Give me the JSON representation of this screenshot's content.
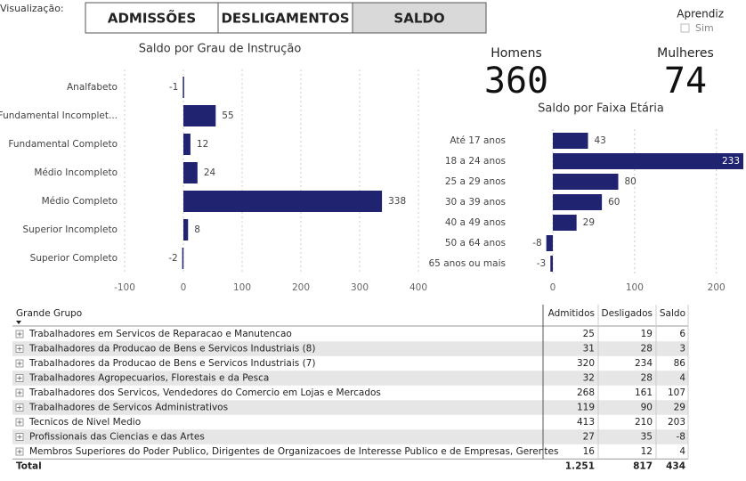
{
  "header": {
    "label": "Visualização:",
    "buttons": [
      "ADMISSÕES",
      "DESLIGAMENTOS",
      "SALDO"
    ],
    "selected": 2
  },
  "filter": {
    "title": "Aprendiz",
    "option": "Sim"
  },
  "cards": [
    {
      "label": "Homens",
      "value": 360
    },
    {
      "label": "Mulheres",
      "value": 74
    }
  ],
  "chart_data": [
    {
      "type": "bar",
      "orientation": "horizontal",
      "title": "Saldo por Grau de Instrução",
      "categories": [
        "Analfabeto",
        "Fundamental Incomplet...",
        "Fundamental Completo",
        "Médio Incompleto",
        "Médio Completo",
        "Superior Incompleto",
        "Superior Completo"
      ],
      "values": [
        -1,
        55,
        12,
        24,
        338,
        8,
        -2
      ],
      "color": "#1f2370",
      "xlim": [
        -100,
        400
      ],
      "xticks": [
        -100,
        0,
        100,
        200,
        300,
        400
      ],
      "grid": true
    },
    {
      "type": "bar",
      "orientation": "horizontal",
      "title": "Saldo por Faixa Etária",
      "categories": [
        "Até 17 anos",
        "18 a 24 anos",
        "25 a 29 anos",
        "30 a 39 anos",
        "40 a 49 anos",
        "50 a 64 anos",
        "65 anos ou mais"
      ],
      "values": [
        43,
        233,
        80,
        60,
        29,
        -8,
        -3
      ],
      "color": "#1f2370",
      "xlim": [
        -12,
        233
      ],
      "xticks": [
        0,
        100,
        200
      ],
      "grid": true
    }
  ],
  "table": {
    "columns": [
      "Grande Grupo",
      "Admitidos",
      "Desligados",
      "Saldo"
    ],
    "rows": [
      [
        "Trabalhadores em Servicos de Reparacao e Manutencao",
        25,
        19,
        6
      ],
      [
        "Trabalhadores da Producao de Bens e Servicos Industriais (8)",
        31,
        28,
        3
      ],
      [
        "Trabalhadores da Producao de Bens e Servicos Industriais (7)",
        320,
        234,
        86
      ],
      [
        "Trabalhadores Agropecuarios, Florestais e da Pesca",
        32,
        28,
        4
      ],
      [
        "Trabalhadores dos Servicos, Vendedores do Comercio em Lojas e Mercados",
        268,
        161,
        107
      ],
      [
        "Trabalhadores de Servicos Administrativos",
        119,
        90,
        29
      ],
      [
        "Tecnicos de Nivel Medio",
        413,
        210,
        203
      ],
      [
        "Profissionais das Ciencias e das Artes",
        27,
        35,
        -8
      ],
      [
        "Membros Superiores do Poder Publico, Dirigentes de Organizacoes de Interesse Publico e de Empresas, Gerentes",
        16,
        12,
        4
      ]
    ],
    "total": [
      "Total",
      "1.251",
      817,
      434
    ]
  }
}
